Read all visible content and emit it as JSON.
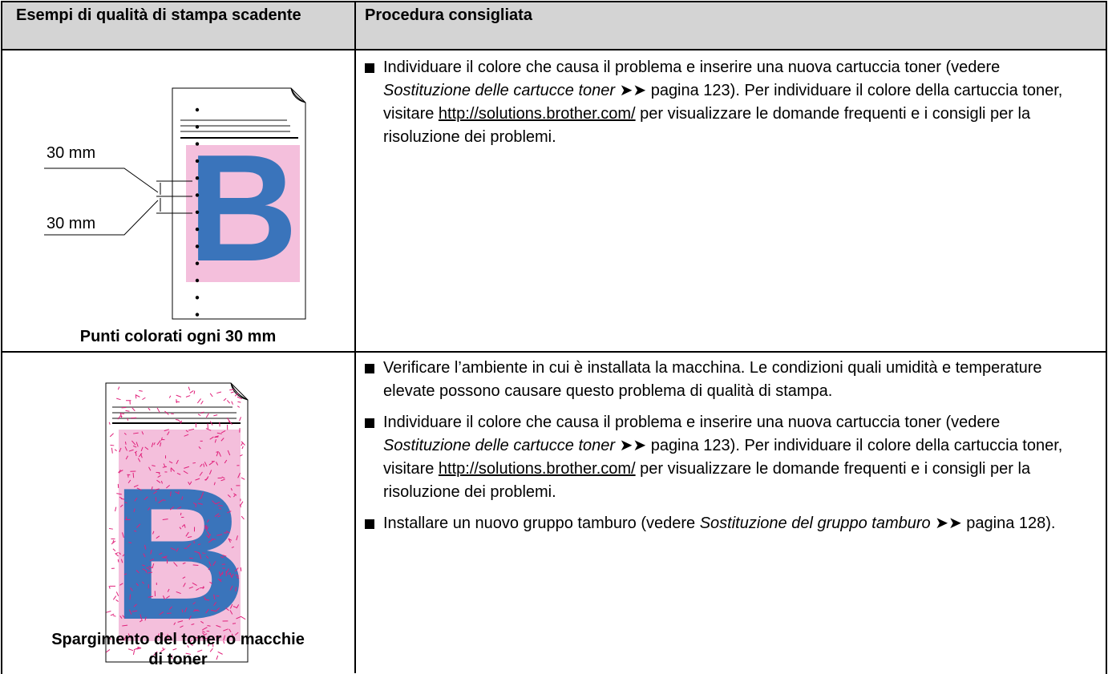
{
  "table": {
    "headers": [
      "Esempi di qualità di stampa scadente",
      "Procedura consigliata"
    ],
    "rows": [
      {
        "illustration_letter": "B",
        "labels": [
          "30 mm",
          "30 mm"
        ],
        "caption": "Punti colorati ogni 30 mm",
        "items": [
          [
            "Individuare il colore che causa il problema e inserire una nuova cartuccia toner (vedere ",
            {
              "italic": "Sostituzione delle cartucce toner"
            },
            " ➤➤ pagina 123). Per individuare il colore della cartuccia toner, visitare ",
            {
              "link": "http://solutions.brother.com/"
            },
            " per visualizzare le domande frequenti e i consigli per la risoluzione dei problemi."
          ]
        ]
      },
      {
        "illustration_letter": "B",
        "caption": "Spargimento del toner o macchie di toner",
        "items": [
          [
            "Verificare l’ambiente in cui è installata la macchina. Le condizioni quali umidità e temperature elevate possono causare questo problema di qualità di stampa."
          ],
          [
            "Individuare il colore che causa il problema e inserire una nuova cartuccia toner (vedere ",
            {
              "italic": "Sostituzione delle cartucce toner"
            },
            " ➤➤ pagina 123). Per individuare il colore della cartuccia toner, visitare ",
            {
              "link": "http://solutions.brother.com/"
            },
            " per visualizzare le domande frequenti e i consigli per la risoluzione dei problemi."
          ],
          [
            "Installare un nuovo gruppo tamburo (vedere ",
            {
              "italic": "Sostituzione del gruppo tamburo"
            },
            " ➤➤ pagina 128)."
          ]
        ]
      }
    ]
  }
}
